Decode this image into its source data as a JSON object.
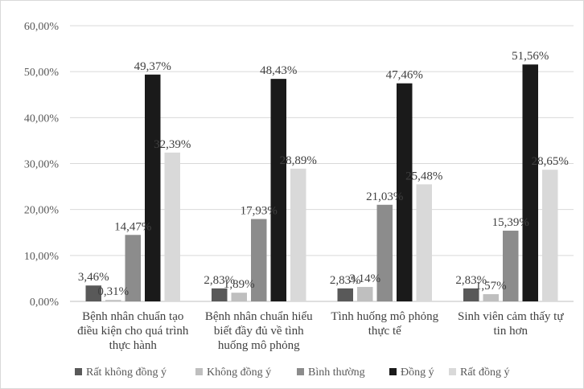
{
  "chart_data": {
    "type": "bar",
    "title": "",
    "xlabel": "",
    "ylabel": "",
    "ylim": [
      0,
      60
    ],
    "yticks": [
      "0,00%",
      "10,00%",
      "20,00%",
      "30,00%",
      "40,00%",
      "50,00%",
      "60,00%"
    ],
    "grid": true,
    "legend_position": "bottom",
    "categories": [
      [
        "Bệnh nhân chuẩn tạo",
        "điều kiện cho quá trình",
        "thực hành"
      ],
      [
        "Bệnh nhân chuẩn hiểu",
        "biết đầy đủ về tình",
        "huống mô phỏng"
      ],
      [
        "Tình huống mô phỏng",
        "thực tế"
      ],
      [
        "Sinh viên cảm thấy tự",
        "tin hơn"
      ]
    ],
    "series": [
      {
        "name": "Rất không đồng ý",
        "color": "#595959",
        "values": [
          3.46,
          2.83,
          2.83,
          2.83
        ],
        "labels": [
          "3,46%",
          "2,83%",
          "2,83%",
          "2,83%"
        ]
      },
      {
        "name": "Không đồng ý",
        "color": "#bfbfbf",
        "values": [
          0.31,
          1.89,
          3.14,
          1.57
        ],
        "labels": [
          "0,31%",
          "1,89%",
          "3,14%",
          "1,57%"
        ]
      },
      {
        "name": "Bình thường",
        "color": "#8c8c8c",
        "values": [
          14.47,
          17.93,
          21.03,
          15.39
        ],
        "labels": [
          "14,47%",
          "17,93%",
          "21,03%",
          "15,39%"
        ]
      },
      {
        "name": "Đồng ý",
        "color": "#1a1a1a",
        "values": [
          49.37,
          48.43,
          47.46,
          51.56
        ],
        "labels": [
          "49,37%",
          "48,43%",
          "47,46%",
          "51,56%"
        ]
      },
      {
        "name": "Rất đồng ý",
        "color": "#d9d9d9",
        "values": [
          32.39,
          28.89,
          25.48,
          28.65
        ],
        "labels": [
          "32,39%",
          "28,89%",
          "25,48%",
          "28,65%"
        ]
      }
    ]
  }
}
